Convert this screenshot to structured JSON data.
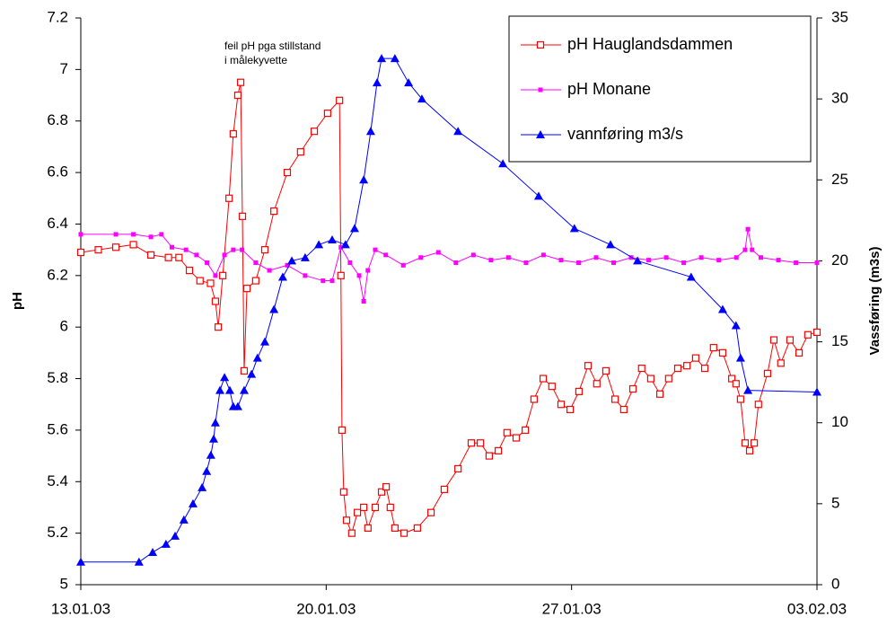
{
  "chart_data": {
    "type": "line",
    "annotations": [
      "feil pH pga stillstand",
      "i målekyvette"
    ],
    "ylabel": "pH",
    "y2label": "Vassføring (m3s)",
    "xlim": [
      0,
      21
    ],
    "xticks": [
      {
        "value": 0,
        "label": "13.01.03"
      },
      {
        "value": 7,
        "label": "20.01.03"
      },
      {
        "value": 14,
        "label": "27.01.03"
      },
      {
        "value": 21,
        "label": "03.02.03"
      }
    ],
    "ylim": [
      5,
      7.2
    ],
    "yticks": [
      5,
      5.2,
      5.4,
      5.6,
      5.8,
      6,
      6.2,
      6.4,
      6.6,
      6.8,
      7,
      7.2
    ],
    "y2lim": [
      0,
      35
    ],
    "y2ticks": [
      0,
      5,
      10,
      15,
      20,
      25,
      30,
      35
    ],
    "legend": "upper right",
    "series": [
      {
        "name": "pH Hauglandsdammen",
        "color": "#ff0000",
        "marker": "open-square",
        "x": [
          0,
          0.5,
          1.0,
          1.5,
          2.0,
          2.5,
          2.8,
          3.1,
          3.4,
          3.7,
          3.84,
          3.92,
          4.05,
          4.23,
          4.35,
          4.48,
          4.56,
          4.61,
          4.66,
          4.74,
          4.99,
          5.25,
          5.51,
          5.89,
          6.27,
          6.66,
          7.04,
          7.38,
          7.42,
          7.45,
          7.5,
          7.58,
          7.73,
          7.89,
          8.07,
          8.19,
          8.4,
          8.58,
          8.71,
          8.83,
          8.96,
          9.22,
          9.6,
          9.99,
          10.37,
          10.76,
          11.14,
          11.4,
          11.65,
          11.91,
          12.16,
          12.42,
          12.68,
          12.93,
          13.19,
          13.44,
          13.7,
          13.96,
          14.21,
          14.47,
          14.72,
          14.98,
          15.24,
          15.49,
          15.75,
          16.0,
          16.26,
          16.52,
          16.77,
          17.03,
          17.29,
          17.54,
          17.8,
          18.05,
          18.31,
          18.57,
          18.69,
          18.82,
          18.95,
          19.08,
          19.21,
          19.33,
          19.59,
          19.77,
          19.97,
          20.23,
          20.49,
          20.74,
          21.0
        ],
        "values": [
          6.29,
          6.3,
          6.31,
          6.32,
          6.28,
          6.27,
          6.27,
          6.22,
          6.18,
          6.17,
          6.1,
          6.0,
          6.2,
          6.5,
          6.75,
          6.9,
          6.95,
          6.43,
          5.83,
          6.15,
          6.18,
          6.3,
          6.45,
          6.6,
          6.68,
          6.76,
          6.83,
          6.88,
          6.2,
          5.6,
          5.36,
          5.25,
          5.2,
          5.28,
          5.3,
          5.22,
          5.3,
          5.36,
          5.38,
          5.3,
          5.22,
          5.2,
          5.22,
          5.28,
          5.37,
          5.45,
          5.55,
          5.55,
          5.5,
          5.52,
          5.59,
          5.57,
          5.6,
          5.72,
          5.8,
          5.77,
          5.7,
          5.68,
          5.75,
          5.85,
          5.78,
          5.83,
          5.72,
          5.68,
          5.76,
          5.84,
          5.8,
          5.74,
          5.8,
          5.84,
          5.85,
          5.88,
          5.84,
          5.92,
          5.9,
          5.8,
          5.78,
          5.72,
          5.55,
          5.52,
          5.55,
          5.7,
          5.82,
          5.95,
          5.86,
          5.95,
          5.9,
          5.97,
          5.98
        ]
      },
      {
        "name": "pH Monane",
        "color": "#ff00ff",
        "marker": "small-square",
        "x": [
          0,
          1,
          1.5,
          2,
          2.3,
          2.6,
          3.0,
          3.3,
          3.6,
          3.84,
          4.1,
          4.35,
          4.6,
          4.99,
          5.38,
          5.89,
          6.4,
          6.91,
          7.17,
          7.42,
          7.68,
          7.94,
          8.07,
          8.19,
          8.4,
          8.7,
          9.2,
          9.7,
          10.2,
          10.7,
          11.2,
          11.7,
          12.2,
          12.7,
          13.2,
          13.7,
          14.2,
          14.7,
          15.2,
          15.7,
          16.2,
          16.7,
          17.2,
          17.7,
          18.2,
          18.7,
          18.95,
          19.03,
          19.15,
          19.4,
          19.9,
          20.4,
          21
        ],
        "values": [
          6.36,
          6.36,
          6.36,
          6.35,
          6.36,
          6.31,
          6.3,
          6.28,
          6.25,
          6.2,
          6.28,
          6.3,
          6.3,
          6.25,
          6.22,
          6.24,
          6.2,
          6.18,
          6.18,
          6.31,
          6.25,
          6.2,
          6.1,
          6.22,
          6.3,
          6.28,
          6.24,
          6.27,
          6.29,
          6.25,
          6.28,
          6.26,
          6.27,
          6.25,
          6.28,
          6.26,
          6.25,
          6.27,
          6.25,
          6.27,
          6.26,
          6.27,
          6.25,
          6.27,
          6.26,
          6.27,
          6.3,
          6.38,
          6.3,
          6.27,
          6.26,
          6.25,
          6.25
        ]
      },
      {
        "name": "vannføring m3/s",
        "color": "#0000ff",
        "marker": "triangle",
        "axis": "y2",
        "x": [
          0,
          1.66,
          2.05,
          2.43,
          2.69,
          2.94,
          3.2,
          3.46,
          3.59,
          3.71,
          3.79,
          3.84,
          3.97,
          4.1,
          4.25,
          4.35,
          4.48,
          4.66,
          4.87,
          5.04,
          5.25,
          5.51,
          5.76,
          6.02,
          6.4,
          6.79,
          7.17,
          7.55,
          7.81,
          8.07,
          8.27,
          8.45,
          8.58,
          8.96,
          9.35,
          9.73,
          10.76,
          12.04,
          13.06,
          14.08,
          15.11,
          15.88,
          17.41,
          18.31,
          18.69,
          18.82,
          19.03,
          21
        ],
        "values": [
          1.4,
          1.4,
          2,
          2.5,
          3,
          4,
          5,
          6,
          7,
          8,
          9,
          10,
          12,
          12.8,
          12,
          11,
          11,
          12,
          13,
          14,
          15,
          17,
          19,
          20,
          20.2,
          21,
          21.3,
          21,
          22,
          25,
          28,
          31,
          32.5,
          32.5,
          31,
          30,
          28,
          26,
          24,
          22,
          21,
          20,
          19,
          17,
          16,
          14,
          12,
          11.9
        ]
      }
    ]
  }
}
